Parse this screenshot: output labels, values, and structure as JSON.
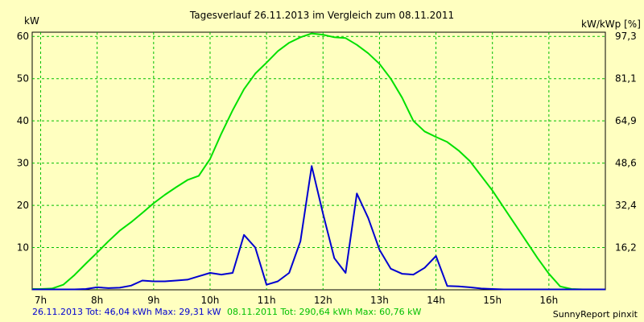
{
  "chart_data": {
    "type": "line",
    "title": "Tagesverlauf 26.11.2013 im Vergleich zum 08.11.2011",
    "y_left_label": "kW",
    "y_right_label": "kW/kWp [%]",
    "ylim": [
      0,
      61
    ],
    "xlim": [
      6.85,
      17.0
    ],
    "grid": true,
    "x_ticks": [
      {
        "value": 7,
        "label": "7h"
      },
      {
        "value": 8,
        "label": "8h"
      },
      {
        "value": 9,
        "label": "9h"
      },
      {
        "value": 10,
        "label": "10h"
      },
      {
        "value": 11,
        "label": "11h"
      },
      {
        "value": 12,
        "label": "12h"
      },
      {
        "value": 13,
        "label": "13h"
      },
      {
        "value": 14,
        "label": "14h"
      },
      {
        "value": 15,
        "label": "15h"
      },
      {
        "value": 16,
        "label": "16h"
      }
    ],
    "y_left_ticks": [
      {
        "value": 10,
        "label": "10"
      },
      {
        "value": 20,
        "label": "20"
      },
      {
        "value": 30,
        "label": "30"
      },
      {
        "value": 40,
        "label": "40"
      },
      {
        "value": 50,
        "label": "50"
      },
      {
        "value": 60,
        "label": "60"
      }
    ],
    "y_right_ticks": [
      {
        "value": 10,
        "label": "16,2"
      },
      {
        "value": 20,
        "label": "32,4"
      },
      {
        "value": 30,
        "label": "48,6"
      },
      {
        "value": 40,
        "label": "64,9"
      },
      {
        "value": 50,
        "label": "81,1"
      },
      {
        "value": 60,
        "label": "97,3"
      }
    ],
    "series": [
      {
        "color": "#00e000",
        "points": [
          [
            6.85,
            0.2
          ],
          [
            7.0,
            0.2
          ],
          [
            7.2,
            0.3
          ],
          [
            7.4,
            1.2
          ],
          [
            7.6,
            3.5
          ],
          [
            7.8,
            6.2
          ],
          [
            8.0,
            8.8
          ],
          [
            8.2,
            11.5
          ],
          [
            8.4,
            14.0
          ],
          [
            8.6,
            16.0
          ],
          [
            8.8,
            18.2
          ],
          [
            9.0,
            20.5
          ],
          [
            9.2,
            22.5
          ],
          [
            9.4,
            24.3
          ],
          [
            9.6,
            26.0
          ],
          [
            9.8,
            27.0
          ],
          [
            10.0,
            31.0
          ],
          [
            10.2,
            37.0
          ],
          [
            10.4,
            42.5
          ],
          [
            10.6,
            47.5
          ],
          [
            10.8,
            51.2
          ],
          [
            11.0,
            53.8
          ],
          [
            11.2,
            56.5
          ],
          [
            11.4,
            58.5
          ],
          [
            11.6,
            59.8
          ],
          [
            11.8,
            60.7
          ],
          [
            12.0,
            60.4
          ],
          [
            12.2,
            59.8
          ],
          [
            12.4,
            59.6
          ],
          [
            12.6,
            58.0
          ],
          [
            12.8,
            56.0
          ],
          [
            13.0,
            53.5
          ],
          [
            13.2,
            50.0
          ],
          [
            13.4,
            45.5
          ],
          [
            13.6,
            40.0
          ],
          [
            13.8,
            37.5
          ],
          [
            14.0,
            36.2
          ],
          [
            14.2,
            35.0
          ],
          [
            14.4,
            33.0
          ],
          [
            14.6,
            30.5
          ],
          [
            14.8,
            27.0
          ],
          [
            15.0,
            23.5
          ],
          [
            15.2,
            19.5
          ],
          [
            15.4,
            15.5
          ],
          [
            15.6,
            11.5
          ],
          [
            15.8,
            7.5
          ],
          [
            16.0,
            3.8
          ],
          [
            16.2,
            0.8
          ],
          [
            16.4,
            0.2
          ],
          [
            16.6,
            0.1
          ],
          [
            17.0,
            0.1
          ]
        ]
      },
      {
        "color": "#0000d0",
        "points": [
          [
            6.85,
            0.1
          ],
          [
            7.0,
            0.1
          ],
          [
            7.2,
            0.1
          ],
          [
            7.4,
            0.1
          ],
          [
            7.6,
            0.1
          ],
          [
            7.8,
            0.2
          ],
          [
            8.0,
            0.6
          ],
          [
            8.2,
            0.4
          ],
          [
            8.4,
            0.5
          ],
          [
            8.6,
            1.0
          ],
          [
            8.8,
            2.2
          ],
          [
            9.0,
            2.0
          ],
          [
            9.2,
            2.0
          ],
          [
            9.4,
            2.2
          ],
          [
            9.6,
            2.4
          ],
          [
            9.8,
            3.2
          ],
          [
            10.0,
            4.0
          ],
          [
            10.2,
            3.6
          ],
          [
            10.4,
            4.0
          ],
          [
            10.6,
            13.0
          ],
          [
            10.8,
            10.0
          ],
          [
            11.0,
            1.2
          ],
          [
            11.2,
            2.0
          ],
          [
            11.4,
            4.0
          ],
          [
            11.6,
            11.5
          ],
          [
            11.8,
            29.3
          ],
          [
            12.0,
            18.0
          ],
          [
            12.2,
            7.5
          ],
          [
            12.4,
            4.0
          ],
          [
            12.6,
            22.8
          ],
          [
            12.8,
            17.0
          ],
          [
            13.0,
            9.5
          ],
          [
            13.2,
            5.0
          ],
          [
            13.4,
            3.8
          ],
          [
            13.6,
            3.6
          ],
          [
            13.8,
            5.2
          ],
          [
            14.0,
            8.0
          ],
          [
            14.2,
            0.9
          ],
          [
            14.4,
            0.8
          ],
          [
            14.6,
            0.6
          ],
          [
            14.8,
            0.3
          ],
          [
            15.0,
            0.2
          ],
          [
            15.2,
            0.1
          ],
          [
            15.4,
            0.1
          ],
          [
            15.6,
            0.1
          ],
          [
            15.8,
            0.1
          ],
          [
            16.0,
            0.1
          ],
          [
            16.2,
            0.1
          ],
          [
            16.4,
            0.1
          ],
          [
            17.0,
            0.1
          ]
        ]
      }
    ]
  },
  "footer": {
    "blue_text": "26.11.2013 Tot: 46,04 kWh Max: 29,31 kW",
    "green_text": "08.11.2011 Tot: 290,64 kWh Max: 60,76 kW",
    "right_text": "SunnyReport pinxit",
    "blue_color": "#0000d0",
    "green_color": "#00c000"
  }
}
